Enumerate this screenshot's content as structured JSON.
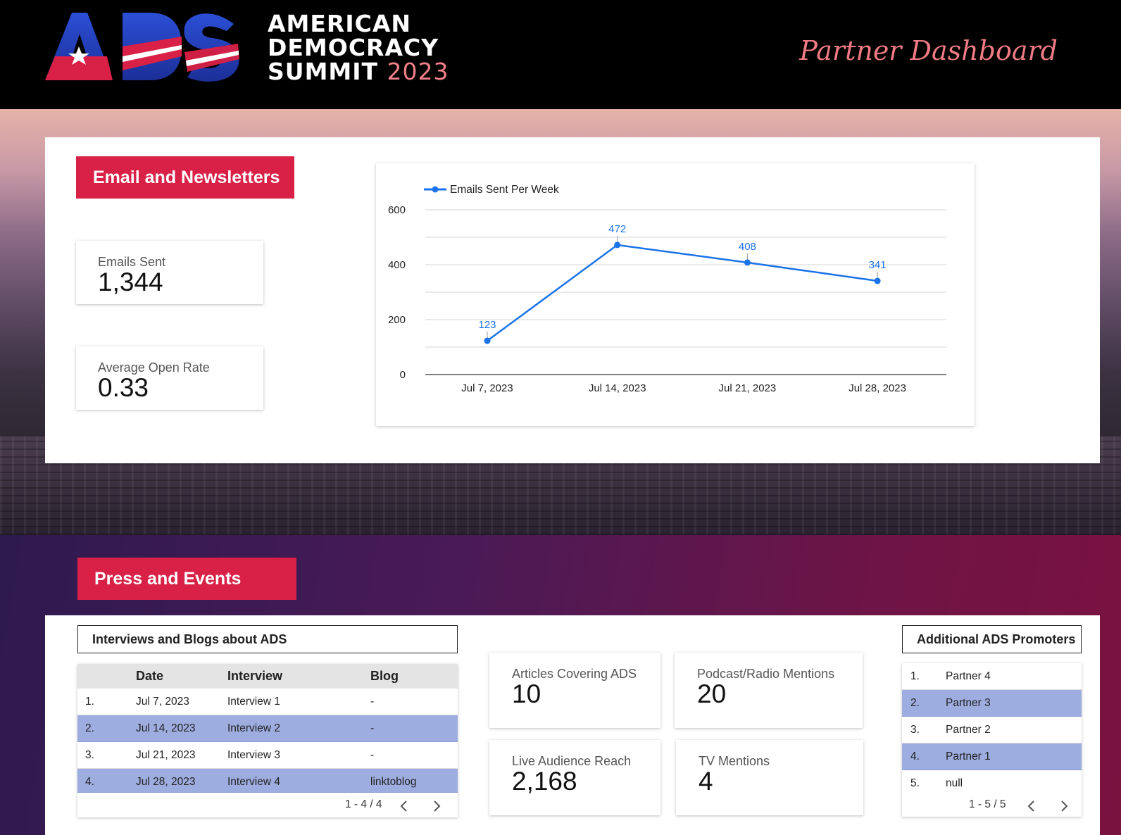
{
  "header": {
    "logo": {
      "letters": "ADS",
      "line1": "AMERICAN",
      "line2": "DEMOCRACY",
      "line3": "SUMMIT",
      "year": "2023"
    },
    "title": "Partner Dashboard"
  },
  "email_section": {
    "badge": "Email and Newsletters",
    "kpis": [
      {
        "label": "Emails Sent",
        "value": "1,344"
      },
      {
        "label": "Average Open Rate",
        "value": "0.33"
      }
    ]
  },
  "chart_data": {
    "type": "line",
    "categories": [
      "Jul 7, 2023",
      "Jul 14, 2023",
      "Jul 21, 2023",
      "Jul 28, 2023"
    ],
    "series": [
      {
        "name": "Emails Sent Per Week",
        "values": [
          123,
          472,
          408,
          341
        ]
      }
    ],
    "ylim": [
      0,
      600
    ],
    "yticks": [
      0,
      200,
      400,
      600
    ],
    "grid": true,
    "legend": "top-left",
    "color": "#1a73e8"
  },
  "press_section": {
    "badge": "Press and Events",
    "interviews_table": {
      "title": "Interviews and Blogs about ADS",
      "columns": [
        "Date",
        "Interview",
        "Blog"
      ],
      "rows": [
        {
          "n": "1.",
          "date": "Jul 7, 2023",
          "interview": "Interview 1",
          "blog": "-"
        },
        {
          "n": "2.",
          "date": "Jul 14, 2023",
          "interview": "Interview 2",
          "blog": "-"
        },
        {
          "n": "3.",
          "date": "Jul 21, 2023",
          "interview": "Interview 3",
          "blog": "-"
        },
        {
          "n": "4.",
          "date": "Jul 28, 2023",
          "interview": "Interview 4",
          "blog": "linktoblog"
        }
      ],
      "pagination": "1 - 4 / 4"
    },
    "kpis": [
      {
        "label": "Articles Covering ADS",
        "value": "10"
      },
      {
        "label": "Podcast/Radio Mentions",
        "value": "20"
      },
      {
        "label": "Live Audience Reach",
        "value": "2,168"
      },
      {
        "label": "TV Mentions",
        "value": "4"
      }
    ],
    "promoters_table": {
      "title": "Additional ADS Promoters",
      "rows": [
        {
          "n": "1.",
          "name": "Partner 4"
        },
        {
          "n": "2.",
          "name": "Partner 3"
        },
        {
          "n": "3.",
          "name": "Partner 2"
        },
        {
          "n": "4.",
          "name": "Partner 1"
        },
        {
          "n": "5.",
          "name": "null"
        }
      ],
      "pagination": "1 - 5 / 5"
    }
  },
  "colors": {
    "accent_red": "#d92046",
    "title_pink": "#f07b84",
    "row_highlight": "#9eaddf",
    "line_blue": "#1a73e8"
  }
}
